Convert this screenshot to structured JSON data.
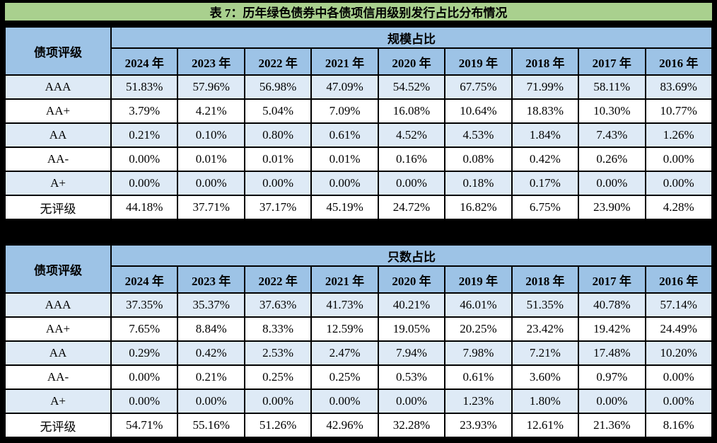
{
  "page": {
    "title": "表 7：历年绿色债券中各债项信用级别发行占比分布情况",
    "colors": {
      "title_bg": "#A9D08E",
      "header_bg": "#9DC3E6",
      "row_alt_bg": "#DEEAF6",
      "row_bg": "#FFFFFF",
      "border": "#000000",
      "text": "#000000"
    }
  },
  "rating_header": "债项评级",
  "years": [
    "2024 年",
    "2023 年",
    "2022 年",
    "2021 年",
    "2020 年",
    "2019 年",
    "2018 年",
    "2017 年",
    "2016 年"
  ],
  "tables": [
    {
      "group_header": "规模占比",
      "rows": [
        {
          "rating": "AAA",
          "values": [
            "51.83%",
            "57.96%",
            "56.98%",
            "47.09%",
            "54.52%",
            "67.75%",
            "71.99%",
            "58.11%",
            "83.69%"
          ]
        },
        {
          "rating": "AA+",
          "values": [
            "3.79%",
            "4.21%",
            "5.04%",
            "7.09%",
            "16.08%",
            "10.64%",
            "18.83%",
            "10.30%",
            "10.77%"
          ]
        },
        {
          "rating": "AA",
          "values": [
            "0.21%",
            "0.10%",
            "0.80%",
            "0.61%",
            "4.52%",
            "4.53%",
            "1.84%",
            "7.43%",
            "1.26%"
          ]
        },
        {
          "rating": "AA-",
          "values": [
            "0.00%",
            "0.01%",
            "0.01%",
            "0.01%",
            "0.16%",
            "0.08%",
            "0.42%",
            "0.26%",
            "0.00%"
          ]
        },
        {
          "rating": "A+",
          "values": [
            "0.00%",
            "0.00%",
            "0.00%",
            "0.00%",
            "0.00%",
            "0.18%",
            "0.17%",
            "0.00%",
            "0.00%"
          ]
        },
        {
          "rating": "无评级",
          "values": [
            "44.18%",
            "37.71%",
            "37.17%",
            "45.19%",
            "24.72%",
            "16.82%",
            "6.75%",
            "23.90%",
            "4.28%"
          ]
        }
      ]
    },
    {
      "group_header": "只数占比",
      "rows": [
        {
          "rating": "AAA",
          "values": [
            "37.35%",
            "35.37%",
            "37.63%",
            "41.73%",
            "40.21%",
            "46.01%",
            "51.35%",
            "40.78%",
            "57.14%"
          ]
        },
        {
          "rating": "AA+",
          "values": [
            "7.65%",
            "8.84%",
            "8.33%",
            "12.59%",
            "19.05%",
            "20.25%",
            "23.42%",
            "19.42%",
            "24.49%"
          ]
        },
        {
          "rating": "AA",
          "values": [
            "0.29%",
            "0.42%",
            "2.53%",
            "2.47%",
            "7.94%",
            "7.98%",
            "7.21%",
            "17.48%",
            "10.20%"
          ]
        },
        {
          "rating": "AA-",
          "values": [
            "0.00%",
            "0.21%",
            "0.25%",
            "0.25%",
            "0.53%",
            "0.61%",
            "3.60%",
            "0.97%",
            "0.00%"
          ]
        },
        {
          "rating": "A+",
          "values": [
            "0.00%",
            "0.00%",
            "0.00%",
            "0.00%",
            "0.00%",
            "1.23%",
            "1.80%",
            "0.00%",
            "0.00%"
          ]
        },
        {
          "rating": "无评级",
          "values": [
            "54.71%",
            "55.16%",
            "51.26%",
            "42.96%",
            "32.28%",
            "23.93%",
            "12.61%",
            "21.36%",
            "8.16%"
          ]
        }
      ]
    }
  ]
}
